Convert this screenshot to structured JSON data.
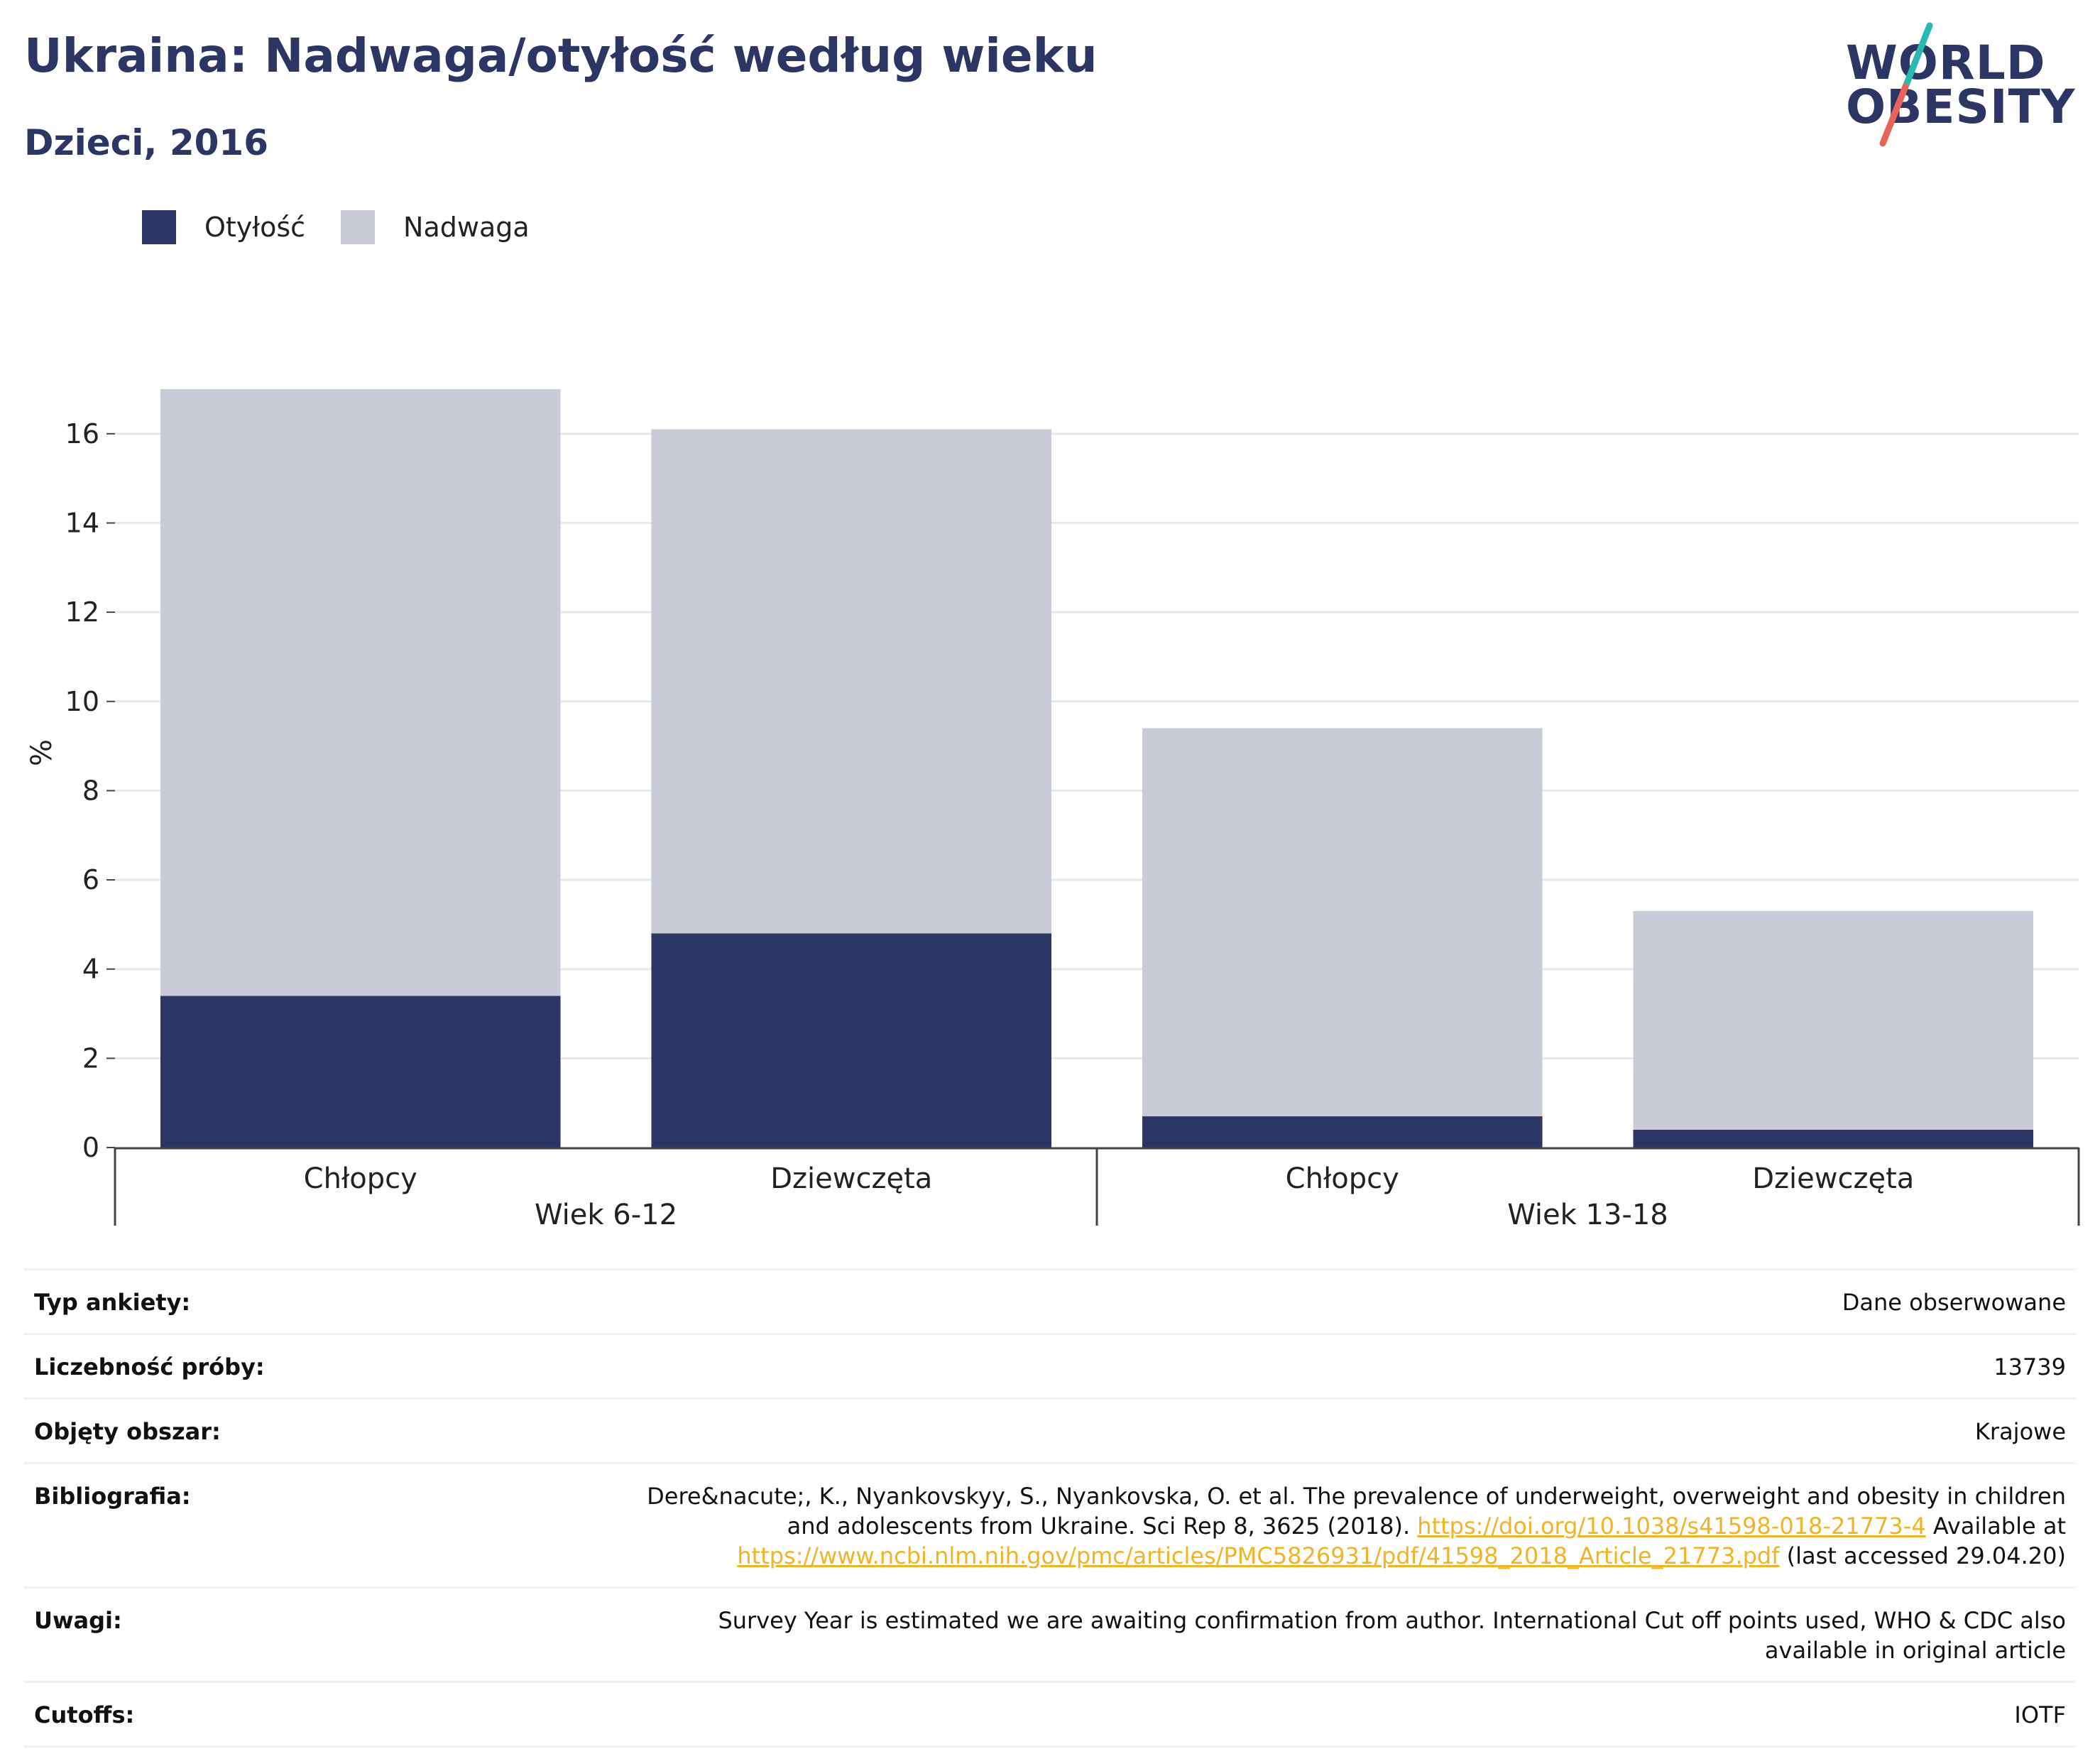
{
  "header": {
    "title": "Ukraina: Nadwaga/otyłość według wieku",
    "subtitle": "Dzieci, 2016"
  },
  "logo": {
    "line1": "WORLD",
    "line2": "OBESITY"
  },
  "colors": {
    "obesity": "#2b3664",
    "overweight": "#c9cbd6",
    "link": "#f0b428",
    "title": "#2b3664"
  },
  "chart_data": {
    "type": "bar",
    "stacked": true,
    "ylabel": "%",
    "ylim": [
      0,
      17
    ],
    "yticks": [
      0,
      2,
      4,
      6,
      8,
      10,
      12,
      14,
      16
    ],
    "grid": true,
    "legend_position": "top-left",
    "categories": [
      "Chłopcy",
      "Dziewczęta",
      "Chłopcy",
      "Dziewczęta"
    ],
    "groups": [
      {
        "label": "Wiek 6-12",
        "categories": [
          0,
          1
        ]
      },
      {
        "label": "Wiek 13-18",
        "categories": [
          2,
          3
        ]
      }
    ],
    "series": [
      {
        "name": "Otyłość",
        "color": "#2b3664",
        "values": [
          3.4,
          4.8,
          0.7,
          0.4
        ]
      },
      {
        "name": "Nadwaga",
        "color": "#c9cbd6",
        "values": [
          13.6,
          11.3,
          8.7,
          4.9
        ]
      }
    ]
  },
  "meta": {
    "rows": [
      {
        "key": "Typ ankiety:",
        "value": "Dane obserwowane"
      },
      {
        "key": "Liczebność próby:",
        "value": "13739"
      },
      {
        "key": "Objęty obszar:",
        "value": "Krajowe"
      },
      {
        "key": "Bibliografia:",
        "value_prefix": "Dere&nacute;, K., Nyankovskyy, S., Nyankovska, O. et al. The prevalence of underweight, overweight and obesity in children and adolescents from Ukraine. Sci Rep 8, 3625 (2018). ",
        "link1": "https://doi.org/10.1038/s41598-018-21773-4",
        "value_mid": " Available at ",
        "link2": "https://www.ncbi.nlm.nih.gov/pmc/articles/PMC5826931/pdf/41598_2018_Article_21773.pdf",
        "value_suffix": " (last accessed 29.04.20)"
      },
      {
        "key": "Uwagi:",
        "value": "Survey Year is estimated we are awaiting confirmation from author. International Cut off points used, WHO & CDC also available in original article"
      },
      {
        "key": "Cutoffs:",
        "value": "IOTF"
      }
    ]
  }
}
